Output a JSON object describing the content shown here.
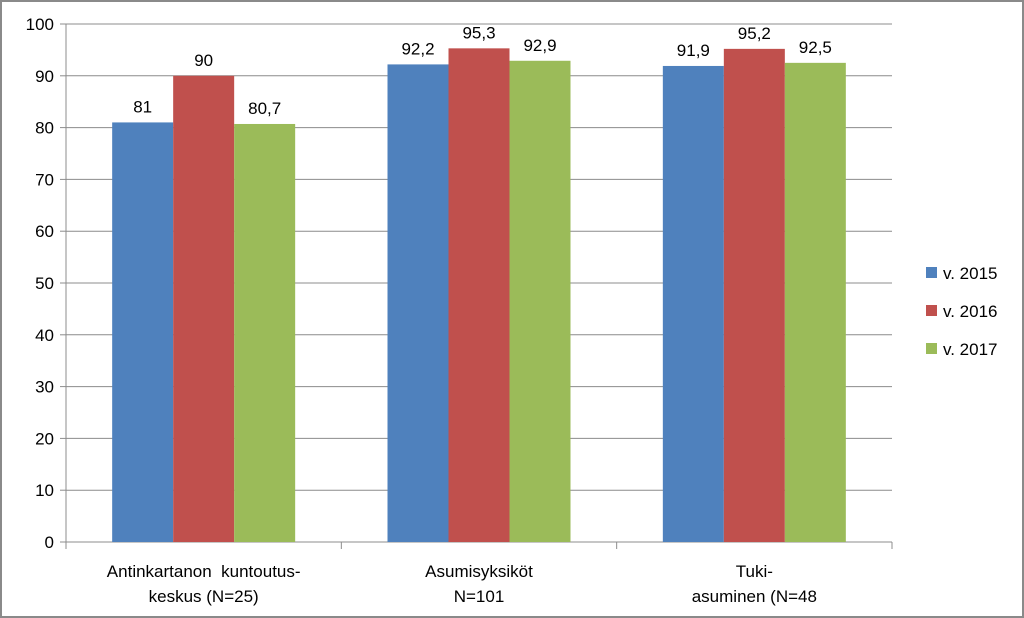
{
  "chart_data": {
    "type": "bar",
    "categories": [
      [
        "Antinkartanon  kuntoutus-",
        "keskus (N=25)"
      ],
      [
        "Asumisyksiköt",
        "N=101"
      ],
      [
        "Tuki-",
        "asuminen (N=48"
      ]
    ],
    "series": [
      {
        "name": "v. 2015",
        "color": "#4f81bd",
        "values": [
          81,
          92.2,
          91.9
        ],
        "labels": [
          "81",
          "92,2",
          "91,9"
        ]
      },
      {
        "name": "v. 2016",
        "color": "#c0504d",
        "values": [
          90,
          95.3,
          95.2
        ],
        "labels": [
          "90",
          "95,3",
          "95,2"
        ]
      },
      {
        "name": "v. 2017",
        "color": "#9bbb59",
        "values": [
          80.7,
          92.9,
          92.5
        ],
        "labels": [
          "80,7",
          "92,9",
          "92,5"
        ]
      }
    ],
    "ylim": [
      0,
      100
    ],
    "yticks": [
      "0",
      "10",
      "20",
      "30",
      "40",
      "50",
      "60",
      "70",
      "80",
      "90",
      "100"
    ],
    "grid": true,
    "legend_position": "right"
  }
}
